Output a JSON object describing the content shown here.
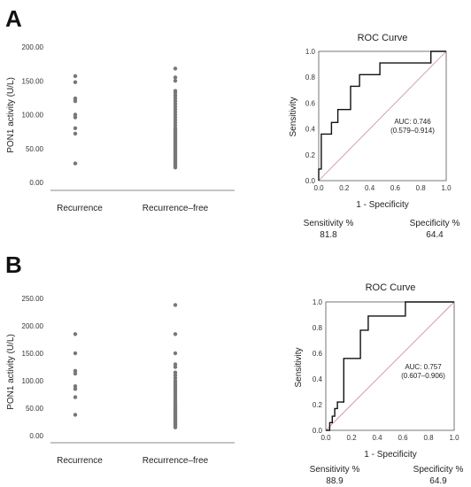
{
  "figure": {
    "panel_labels": [
      "A",
      "B"
    ],
    "stat_labels": {
      "sensitivity": "Sensitivity %",
      "specificity": "Specificity %"
    }
  },
  "chart_data": [
    {
      "panel": "A",
      "type": "scatter",
      "ylabel": "PON1 activity (U/L)",
      "yticks": [
        "0.00",
        "50.00",
        "100.00",
        "150.00",
        "200.00"
      ],
      "ylim": [
        0,
        200
      ],
      "categories": [
        "Recurrence",
        "Recurrence–free"
      ],
      "series": [
        {
          "category": "Recurrence",
          "values": [
            28,
            72,
            80,
            96,
            100,
            120,
            124,
            148,
            157
          ]
        },
        {
          "category": "Recurrence–free",
          "values": [
            22,
            24,
            26,
            28,
            30,
            32,
            34,
            36,
            38,
            40,
            42,
            44,
            46,
            48,
            50,
            52,
            54,
            56,
            58,
            60,
            62,
            64,
            66,
            68,
            70,
            72,
            74,
            76,
            78,
            80,
            84,
            88,
            92,
            96,
            100,
            104,
            108,
            112,
            116,
            120,
            124,
            128,
            132,
            135,
            150,
            155,
            168
          ]
        }
      ]
    },
    {
      "panel": "A",
      "type": "line",
      "title": "ROC Curve",
      "xlabel": "1 - Specificity",
      "ylabel": "Sensitivity",
      "xlim": [
        0,
        1
      ],
      "ylim": [
        0,
        1
      ],
      "xticks": [
        "0.0",
        "0.2",
        "0.4",
        "0.6",
        "0.8",
        "1.0"
      ],
      "yticks": [
        "0.0",
        "0.2",
        "0.4",
        "0.6",
        "0.8",
        "1.0"
      ],
      "auc_text": "AUC: 0.746",
      "ci_text": "(0.579–0.914)",
      "sensitivity": "81.8",
      "specificity": "64.4",
      "curve": [
        [
          0,
          0
        ],
        [
          0,
          0.09
        ],
        [
          0.02,
          0.09
        ],
        [
          0.02,
          0.36
        ],
        [
          0.1,
          0.36
        ],
        [
          0.1,
          0.45
        ],
        [
          0.15,
          0.45
        ],
        [
          0.15,
          0.55
        ],
        [
          0.25,
          0.55
        ],
        [
          0.25,
          0.73
        ],
        [
          0.32,
          0.73
        ],
        [
          0.32,
          0.82
        ],
        [
          0.48,
          0.82
        ],
        [
          0.48,
          0.91
        ],
        [
          0.88,
          0.91
        ],
        [
          0.88,
          1.0
        ],
        [
          1.0,
          1.0
        ]
      ]
    },
    {
      "panel": "B",
      "type": "scatter",
      "ylabel": "PON1 activity (U/L)",
      "yticks": [
        "0.00",
        "50.00",
        "100.00",
        "150.00",
        "200.00",
        "250.00"
      ],
      "ylim": [
        0,
        250
      ],
      "categories": [
        "Recurrence",
        "Recurrence–free"
      ],
      "series": [
        {
          "category": "Recurrence",
          "values": [
            38,
            70,
            85,
            90,
            113,
            118,
            150,
            185
          ]
        },
        {
          "category": "Recurrence–free",
          "values": [
            15,
            18,
            20,
            22,
            24,
            26,
            28,
            30,
            32,
            34,
            36,
            38,
            40,
            42,
            44,
            46,
            48,
            50,
            52,
            55,
            58,
            60,
            64,
            68,
            72,
            76,
            80,
            84,
            88,
            92,
            96,
            100,
            105,
            110,
            115,
            125,
            130,
            150,
            185,
            238
          ]
        }
      ]
    },
    {
      "panel": "B",
      "type": "line",
      "title": "ROC Curve",
      "xlabel": "1 - Specificity",
      "ylabel": "Sensitivity",
      "xlim": [
        0,
        1
      ],
      "ylim": [
        0,
        1
      ],
      "xticks": [
        "0.0",
        "0.2",
        "0.4",
        "0.6",
        "0.8",
        "1.0"
      ],
      "yticks": [
        "0.0",
        "0.2",
        "0.4",
        "0.6",
        "0.8",
        "1.0"
      ],
      "auc_text": "AUC: 0.757",
      "ci_text": "(0.607–0.906)",
      "sensitivity": "88.9",
      "specificity": "64.9",
      "curve": [
        [
          0,
          0
        ],
        [
          0.03,
          0
        ],
        [
          0.03,
          0.06
        ],
        [
          0.05,
          0.06
        ],
        [
          0.05,
          0.11
        ],
        [
          0.07,
          0.11
        ],
        [
          0.07,
          0.17
        ],
        [
          0.09,
          0.17
        ],
        [
          0.09,
          0.22
        ],
        [
          0.14,
          0.22
        ],
        [
          0.14,
          0.56
        ],
        [
          0.27,
          0.56
        ],
        [
          0.27,
          0.78
        ],
        [
          0.33,
          0.78
        ],
        [
          0.33,
          0.89
        ],
        [
          0.62,
          0.89
        ],
        [
          0.62,
          1.0
        ],
        [
          1.0,
          1.0
        ]
      ]
    }
  ]
}
